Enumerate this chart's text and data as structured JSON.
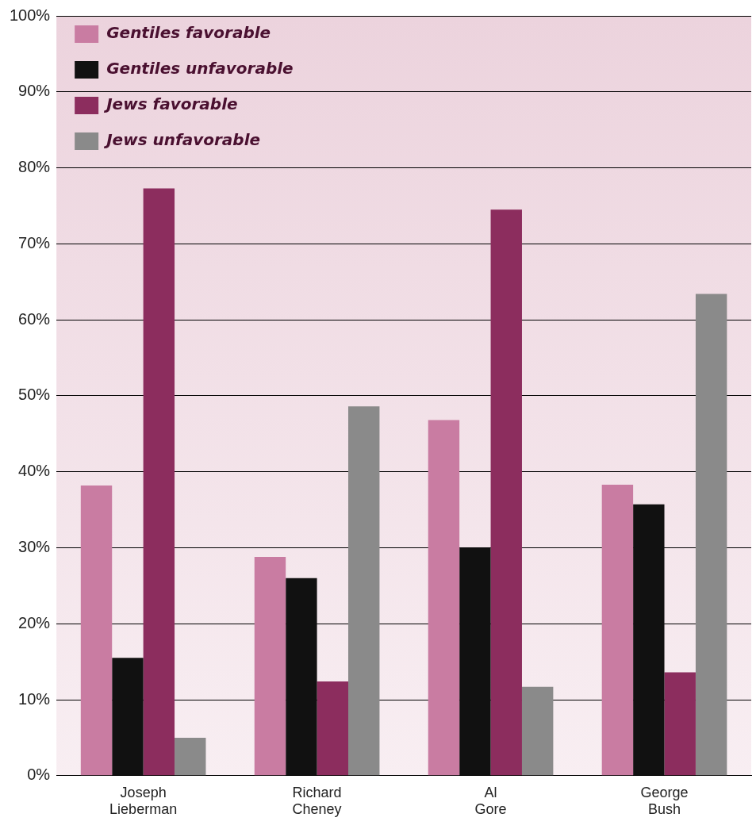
{
  "chart_data": {
    "type": "bar",
    "categories": [
      "Joseph\nLieberman",
      "Richard\nCheney",
      "Al\nGore",
      "George\nBush"
    ],
    "series": [
      {
        "name": "Gentiles favorable",
        "color": "#c97ca2",
        "values": [
          38.2,
          28.8,
          46.8,
          38.3
        ]
      },
      {
        "name": "Gentiles unfavorable",
        "color": "#111111",
        "values": [
          15.5,
          26,
          30,
          35.7
        ]
      },
      {
        "name": "Jews favorable",
        "color": "#8c2d5e",
        "values": [
          77.3,
          12.4,
          74.5,
          13.6
        ]
      },
      {
        "name": "Jews unfavorable",
        "color": "#8a8a8a",
        "values": [
          5,
          48.6,
          11.7,
          63.4
        ]
      }
    ],
    "ylim": [
      0,
      100
    ],
    "yticks": [
      {
        "value": 0,
        "label": "0%"
      },
      {
        "value": 10,
        "label": "10%"
      },
      {
        "value": 20,
        "label": "20%"
      },
      {
        "value": 30,
        "label": "30%"
      },
      {
        "value": 40,
        "label": "40%"
      },
      {
        "value": 50,
        "label": "50%"
      },
      {
        "value": 60,
        "label": "60%"
      },
      {
        "value": 70,
        "label": "70%"
      },
      {
        "value": 80,
        "label": "80%"
      },
      {
        "value": 90,
        "label": "90%"
      },
      {
        "value": 100,
        "label": "100%"
      }
    ],
    "grid": "y",
    "legend": "top left"
  }
}
